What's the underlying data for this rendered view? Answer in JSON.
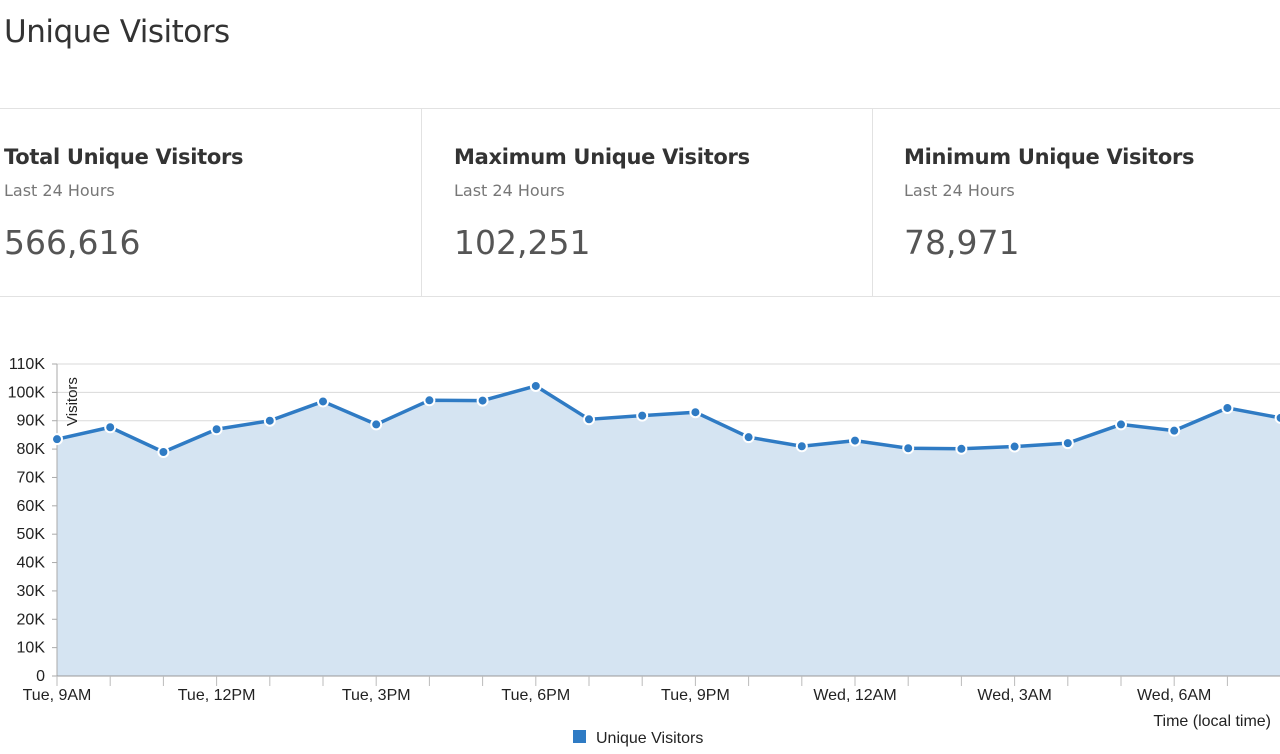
{
  "page": {
    "title": "Unique Visitors"
  },
  "stats": [
    {
      "label": "Total Unique Visitors",
      "period": "Last 24 Hours",
      "value": "566,616"
    },
    {
      "label": "Maximum Unique Visitors",
      "period": "Last 24 Hours",
      "value": "102,251"
    },
    {
      "label": "Minimum Unique Visitors",
      "period": "Last 24 Hours",
      "value": "78,971"
    }
  ],
  "colors": {
    "series": "#2f7bc4",
    "area": "#d5e4f2",
    "grid": "#dadada"
  },
  "chart_data": {
    "type": "area",
    "xlabel": "Time (local time)",
    "ylabel": "Visitors",
    "ylim": [
      0,
      110000
    ],
    "yticks": [
      0,
      10000,
      20000,
      30000,
      40000,
      50000,
      60000,
      70000,
      80000,
      90000,
      100000,
      110000
    ],
    "ytick_labels": [
      "0",
      "10K",
      "20K",
      "30K",
      "40K",
      "50K",
      "60K",
      "70K",
      "80K",
      "90K",
      "100K",
      "110K"
    ],
    "x_tick_labels": [
      {
        "index": 0,
        "label": "Tue, 9AM"
      },
      {
        "index": 3,
        "label": "Tue, 12PM"
      },
      {
        "index": 6,
        "label": "Tue, 3PM"
      },
      {
        "index": 9,
        "label": "Tue, 6PM"
      },
      {
        "index": 12,
        "label": "Tue, 9PM"
      },
      {
        "index": 15,
        "label": "Wed, 12AM"
      },
      {
        "index": 18,
        "label": "Wed, 3AM"
      },
      {
        "index": 21,
        "label": "Wed, 6AM"
      }
    ],
    "grid": true,
    "legend": "bottom-center",
    "series": [
      {
        "name": "Unique Visitors",
        "values": [
          83500,
          87700,
          78971,
          87000,
          90000,
          96800,
          88700,
          97200,
          97100,
          102251,
          90500,
          91800,
          93000,
          84200,
          81000,
          83000,
          80300,
          80100,
          80900,
          82100,
          88700,
          86500,
          94500,
          91000
        ]
      }
    ]
  }
}
